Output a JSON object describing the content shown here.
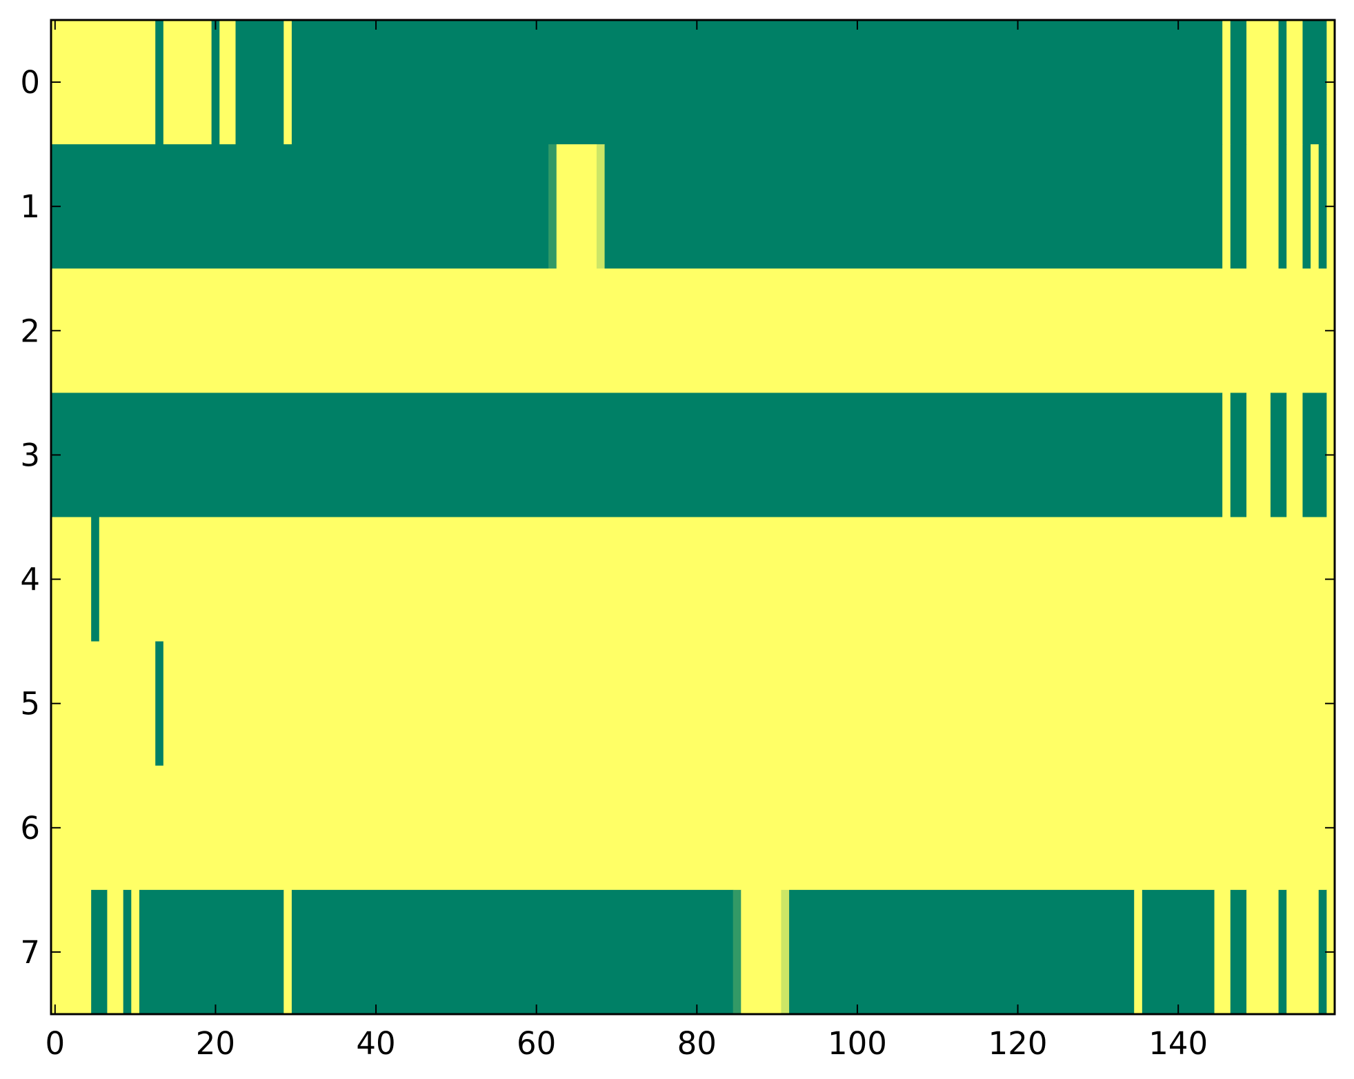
{
  "chart_data": {
    "type": "heatmap",
    "title": "",
    "xlabel": "",
    "ylabel": "",
    "n_rows": 8,
    "n_cols": 160,
    "x_ticks": [
      0,
      20,
      40,
      60,
      80,
      100,
      120,
      140
    ],
    "y_ticks": [
      0,
      1,
      2,
      3,
      4,
      5,
      6,
      7
    ],
    "x_tick_labels": [
      "0",
      "20",
      "40",
      "60",
      "80",
      "100",
      "120",
      "140"
    ],
    "y_tick_labels": [
      "0",
      "1",
      "2",
      "3",
      "4",
      "5",
      "6",
      "7"
    ],
    "xlim": [
      -0.5,
      159.5
    ],
    "ylim": [
      7.5,
      -0.5
    ],
    "colormap": "summer",
    "value_range": [
      0,
      1
    ],
    "grid": false,
    "legend": "none",
    "colors": {
      "low": "#008066",
      "high": "#ffff66",
      "frame": "#000000",
      "background": "#ffffff"
    },
    "default_value": 1,
    "low_value_runs": [
      {
        "row": 0,
        "start": 13,
        "end": 13,
        "value": 0
      },
      {
        "row": 0,
        "start": 20,
        "end": 20,
        "value": 0
      },
      {
        "row": 0,
        "start": 23,
        "end": 28,
        "value": 0
      },
      {
        "row": 0,
        "start": 30,
        "end": 145,
        "value": 0
      },
      {
        "row": 0,
        "start": 147,
        "end": 148,
        "value": 0
      },
      {
        "row": 0,
        "start": 153,
        "end": 153,
        "value": 0
      },
      {
        "row": 0,
        "start": 156,
        "end": 158,
        "value": 0
      },
      {
        "row": 1,
        "start": 0,
        "end": 61,
        "value": 0
      },
      {
        "row": 1,
        "start": 62,
        "end": 62,
        "value": 0.2
      },
      {
        "row": 1,
        "start": 68,
        "end": 68,
        "value": 0.8
      },
      {
        "row": 1,
        "start": 69,
        "end": 145,
        "value": 0
      },
      {
        "row": 1,
        "start": 147,
        "end": 148,
        "value": 0
      },
      {
        "row": 1,
        "start": 153,
        "end": 153,
        "value": 0
      },
      {
        "row": 1,
        "start": 156,
        "end": 156,
        "value": 0
      },
      {
        "row": 1,
        "start": 158,
        "end": 158,
        "value": 0
      },
      {
        "row": 3,
        "start": 0,
        "end": 145,
        "value": 0
      },
      {
        "row": 3,
        "start": 147,
        "end": 148,
        "value": 0
      },
      {
        "row": 3,
        "start": 152,
        "end": 153,
        "value": 0
      },
      {
        "row": 3,
        "start": 156,
        "end": 158,
        "value": 0
      },
      {
        "row": 4,
        "start": 5,
        "end": 5,
        "value": 0
      },
      {
        "row": 5,
        "start": 13,
        "end": 13,
        "value": 0
      },
      {
        "row": 7,
        "start": 5,
        "end": 6,
        "value": 0
      },
      {
        "row": 7,
        "start": 9,
        "end": 9,
        "value": 0
      },
      {
        "row": 7,
        "start": 11,
        "end": 28,
        "value": 0
      },
      {
        "row": 7,
        "start": 30,
        "end": 84,
        "value": 0
      },
      {
        "row": 7,
        "start": 85,
        "end": 85,
        "value": 0.2
      },
      {
        "row": 7,
        "start": 91,
        "end": 91,
        "value": 0.8
      },
      {
        "row": 7,
        "start": 92,
        "end": 134,
        "value": 0
      },
      {
        "row": 7,
        "start": 136,
        "end": 144,
        "value": 0
      },
      {
        "row": 7,
        "start": 147,
        "end": 148,
        "value": 0
      },
      {
        "row": 7,
        "start": 153,
        "end": 153,
        "value": 0
      },
      {
        "row": 7,
        "start": 158,
        "end": 158,
        "value": 0
      }
    ]
  }
}
